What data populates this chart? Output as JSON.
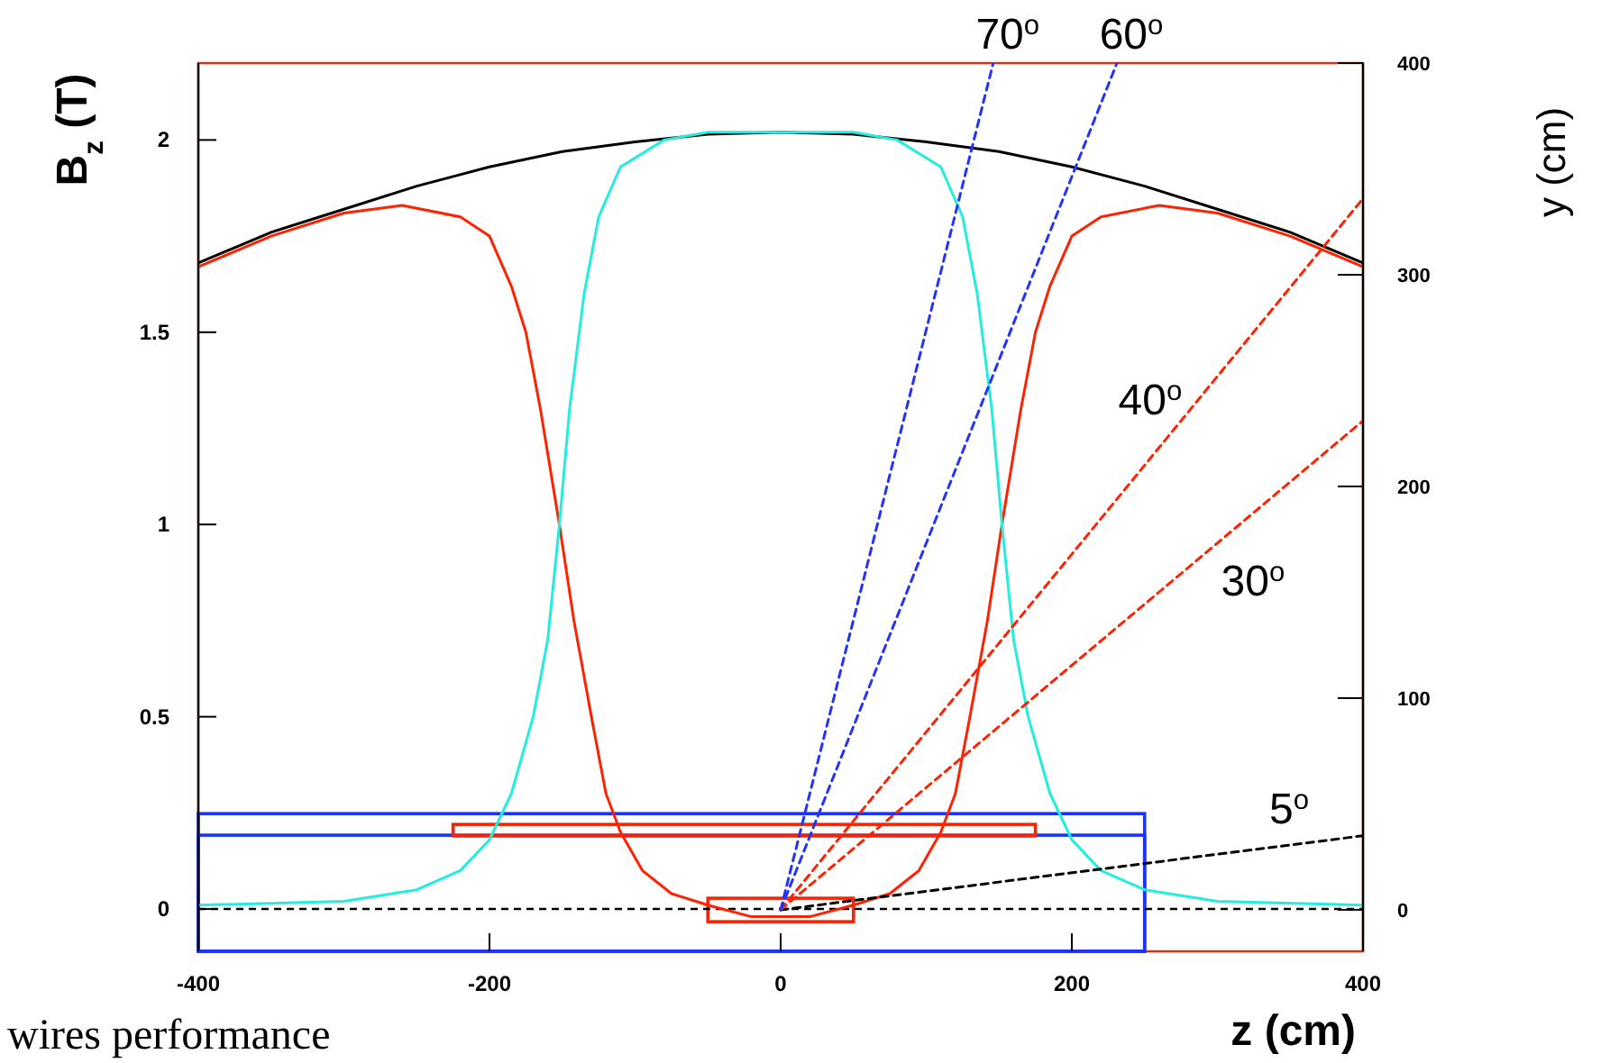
{
  "chart_data": {
    "type": "line",
    "xlabel": "z (cm)",
    "ylabel": "B$_{z}$ (T)",
    "y2label": "y (cm)",
    "xlim": [
      -400,
      400
    ],
    "xticks": [
      -400,
      -200,
      0,
      200,
      400
    ],
    "ylim": [
      -0.11,
      2.2
    ],
    "yticks": [
      0,
      0.5,
      1,
      1.5,
      2
    ],
    "y2lim": [
      -19.6,
      400
    ],
    "y2ticks": [
      0,
      100,
      200,
      300,
      400
    ],
    "series": [
      {
        "color": "#000000",
        "x": [
          -400,
          -350,
          -300,
          -250,
          -200,
          -150,
          -100,
          -50,
          0,
          50,
          100,
          150,
          200,
          250,
          300,
          350,
          400
        ],
        "values": [
          1.68,
          1.76,
          1.82,
          1.88,
          1.93,
          1.97,
          1.995,
          2.015,
          2.02,
          2.015,
          1.995,
          1.97,
          1.93,
          1.88,
          1.82,
          1.76,
          1.68
        ]
      },
      {
        "color": "#ff2200",
        "x": [
          -400,
          -350,
          -300,
          -260,
          -220,
          -200,
          -185,
          -175,
          -165,
          -152,
          -142,
          -130,
          -120,
          -110,
          -95,
          -75,
          -50,
          -20,
          0,
          20,
          50,
          75,
          95,
          110,
          120,
          130,
          142,
          152,
          165,
          175,
          185,
          200,
          220,
          260,
          300,
          350,
          400
        ],
        "values": [
          1.67,
          1.75,
          1.81,
          1.83,
          1.8,
          1.75,
          1.62,
          1.5,
          1.3,
          1.0,
          0.75,
          0.5,
          0.3,
          0.2,
          0.1,
          0.04,
          0.01,
          -0.02,
          -0.02,
          -0.02,
          0.01,
          0.04,
          0.1,
          0.2,
          0.3,
          0.5,
          0.75,
          1.0,
          1.3,
          1.5,
          1.62,
          1.75,
          1.8,
          1.83,
          1.81,
          1.75,
          1.67
        ]
      },
      {
        "color": "#22eedd",
        "x": [
          -400,
          -300,
          -250,
          -220,
          -200,
          -185,
          -170,
          -160,
          -152,
          -145,
          -135,
          -125,
          -110,
          -80,
          -50,
          0,
          50,
          80,
          110,
          125,
          135,
          145,
          152,
          160,
          170,
          185,
          200,
          220,
          250,
          300,
          400
        ],
        "values": [
          0.01,
          0.02,
          0.05,
          0.1,
          0.18,
          0.3,
          0.5,
          0.7,
          1.0,
          1.3,
          1.6,
          1.8,
          1.93,
          2.0,
          2.02,
          2.02,
          2.02,
          2.0,
          1.93,
          1.8,
          1.6,
          1.3,
          1.0,
          0.7,
          0.5,
          0.3,
          0.18,
          0.1,
          0.05,
          0.02,
          0.01
        ]
      },
      {
        "name": "5$^{o}$",
        "color": "#000000",
        "axis": "y2",
        "line_style": "dashed",
        "x": [
          0,
          400
        ],
        "values": [
          0,
          35
        ]
      },
      {
        "name": "30$^{o}$",
        "color": "#ff2200",
        "axis": "y2",
        "line_style": "dashed",
        "x": [
          0,
          400
        ],
        "values": [
          0,
          231
        ]
      },
      {
        "name": "40$^{o}$",
        "color": "#ff2200",
        "axis": "y2",
        "line_style": "dashed",
        "x": [
          0,
          400
        ],
        "values": [
          0,
          336
        ]
      },
      {
        "name": "60$^{o}$",
        "color": "#2233ff",
        "axis": "y2",
        "line_style": "dashed",
        "x": [
          0,
          231
        ],
        "values": [
          0,
          400
        ]
      },
      {
        "name": "70$^{o}$",
        "color": "#2233ff",
        "axis": "y2",
        "line_style": "dashed",
        "x": [
          0,
          146
        ],
        "values": [
          0,
          400
        ]
      }
    ],
    "ref_lines": [
      {
        "axis": "y",
        "value": 0,
        "color": "#000000",
        "line_style": "dashed"
      }
    ],
    "annotations": [
      "wires performance"
    ]
  }
}
